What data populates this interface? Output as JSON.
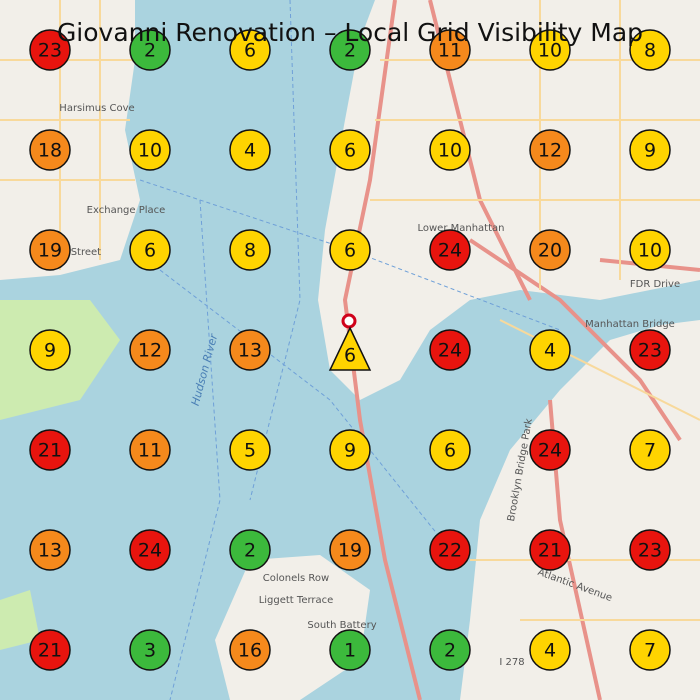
{
  "title": "Giovanni Renovation – Local Grid Visibility Map",
  "grid": {
    "rows": [
      [
        {
          "value": 23,
          "color": "#e8140e"
        },
        {
          "value": 2,
          "color": "#3cb93c"
        },
        {
          "value": 6,
          "color": "#ffd400"
        },
        {
          "value": 2,
          "color": "#3cb93c"
        },
        {
          "value": 11,
          "color": "#f5891c"
        },
        {
          "value": 10,
          "color": "#ffd400"
        },
        {
          "value": 8,
          "color": "#ffd400"
        }
      ],
      [
        {
          "value": 18,
          "color": "#f5891c"
        },
        {
          "value": 10,
          "color": "#ffd400"
        },
        {
          "value": 4,
          "color": "#ffd400"
        },
        {
          "value": 6,
          "color": "#ffd400"
        },
        {
          "value": 10,
          "color": "#ffd400"
        },
        {
          "value": 12,
          "color": "#f5891c"
        },
        {
          "value": 9,
          "color": "#ffd400"
        }
      ],
      [
        {
          "value": 19,
          "color": "#f5891c"
        },
        {
          "value": 6,
          "color": "#ffd400"
        },
        {
          "value": 8,
          "color": "#ffd400"
        },
        {
          "value": 6,
          "color": "#ffd400"
        },
        {
          "value": 24,
          "color": "#e8140e"
        },
        {
          "value": 20,
          "color": "#f5891c"
        },
        {
          "value": 10,
          "color": "#ffd400"
        }
      ],
      [
        {
          "value": 9,
          "color": "#ffd400"
        },
        {
          "value": 12,
          "color": "#f5891c"
        },
        {
          "value": 13,
          "color": "#f5891c"
        },
        {
          "value": 6,
          "color": "#ffd400",
          "shape": "triangle"
        },
        {
          "value": 24,
          "color": "#e8140e"
        },
        {
          "value": 4,
          "color": "#ffd400"
        },
        {
          "value": 23,
          "color": "#e8140e"
        }
      ],
      [
        {
          "value": 21,
          "color": "#e8140e"
        },
        {
          "value": 11,
          "color": "#f5891c"
        },
        {
          "value": 5,
          "color": "#ffd400"
        },
        {
          "value": 9,
          "color": "#ffd400"
        },
        {
          "value": 6,
          "color": "#ffd400"
        },
        {
          "value": 24,
          "color": "#e8140e"
        },
        {
          "value": 7,
          "color": "#ffd400"
        }
      ],
      [
        {
          "value": 13,
          "color": "#f5891c"
        },
        {
          "value": 24,
          "color": "#e8140e"
        },
        {
          "value": 2,
          "color": "#3cb93c"
        },
        {
          "value": 19,
          "color": "#f5891c"
        },
        {
          "value": 22,
          "color": "#e8140e"
        },
        {
          "value": 21,
          "color": "#e8140e"
        },
        {
          "value": 23,
          "color": "#e8140e"
        }
      ],
      [
        {
          "value": 21,
          "color": "#e8140e"
        },
        {
          "value": 3,
          "color": "#3cb93c"
        },
        {
          "value": 16,
          "color": "#f5891c"
        },
        {
          "value": 1,
          "color": "#3cb93c"
        },
        {
          "value": 2,
          "color": "#3cb93c"
        },
        {
          "value": 4,
          "color": "#ffd400"
        },
        {
          "value": 7,
          "color": "#ffd400"
        }
      ]
    ]
  },
  "map_labels": [
    "Harsimus Cove",
    "Exchange Place",
    "Lower Manhattan",
    "Manhattan Bridge",
    "Colonels Row",
    "Liggett Terrace",
    "South Battery",
    "Hudson River",
    "FDR Drive",
    "Essex Street",
    "Brooklyn Bridge Park",
    "Atlantic Avenue",
    "I 278"
  ]
}
